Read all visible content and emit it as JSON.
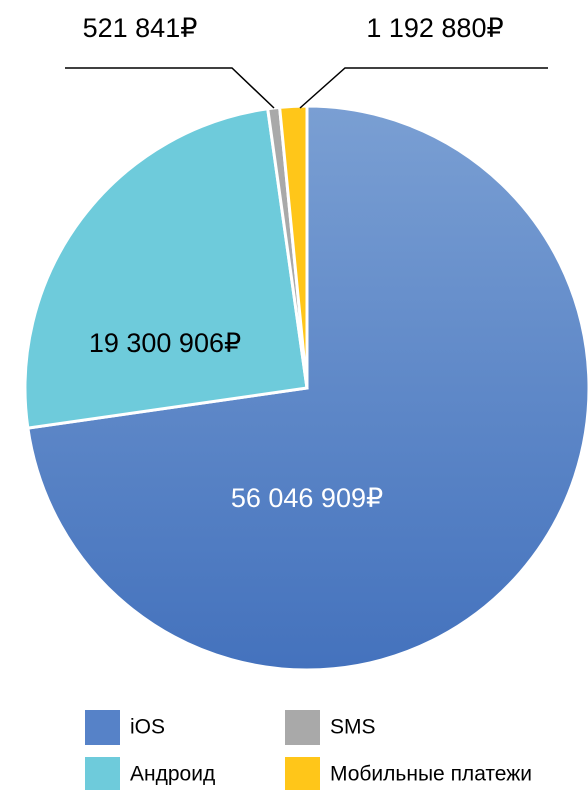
{
  "chart_data": {
    "type": "pie",
    "categories": [
      "iOS",
      "Андроид",
      "SMS",
      "Мобильные платежи"
    ],
    "values": [
      56046909,
      19300906,
      521841,
      1192880
    ],
    "value_labels": [
      "56 046 909₽",
      "19 300 906₽",
      "521 841₽",
      "1 192 880₽"
    ],
    "colors": [
      "#5682c8",
      "#6ecbdb",
      "#a9a9a9",
      "#ffc619"
    ],
    "legend": "bottom"
  }
}
